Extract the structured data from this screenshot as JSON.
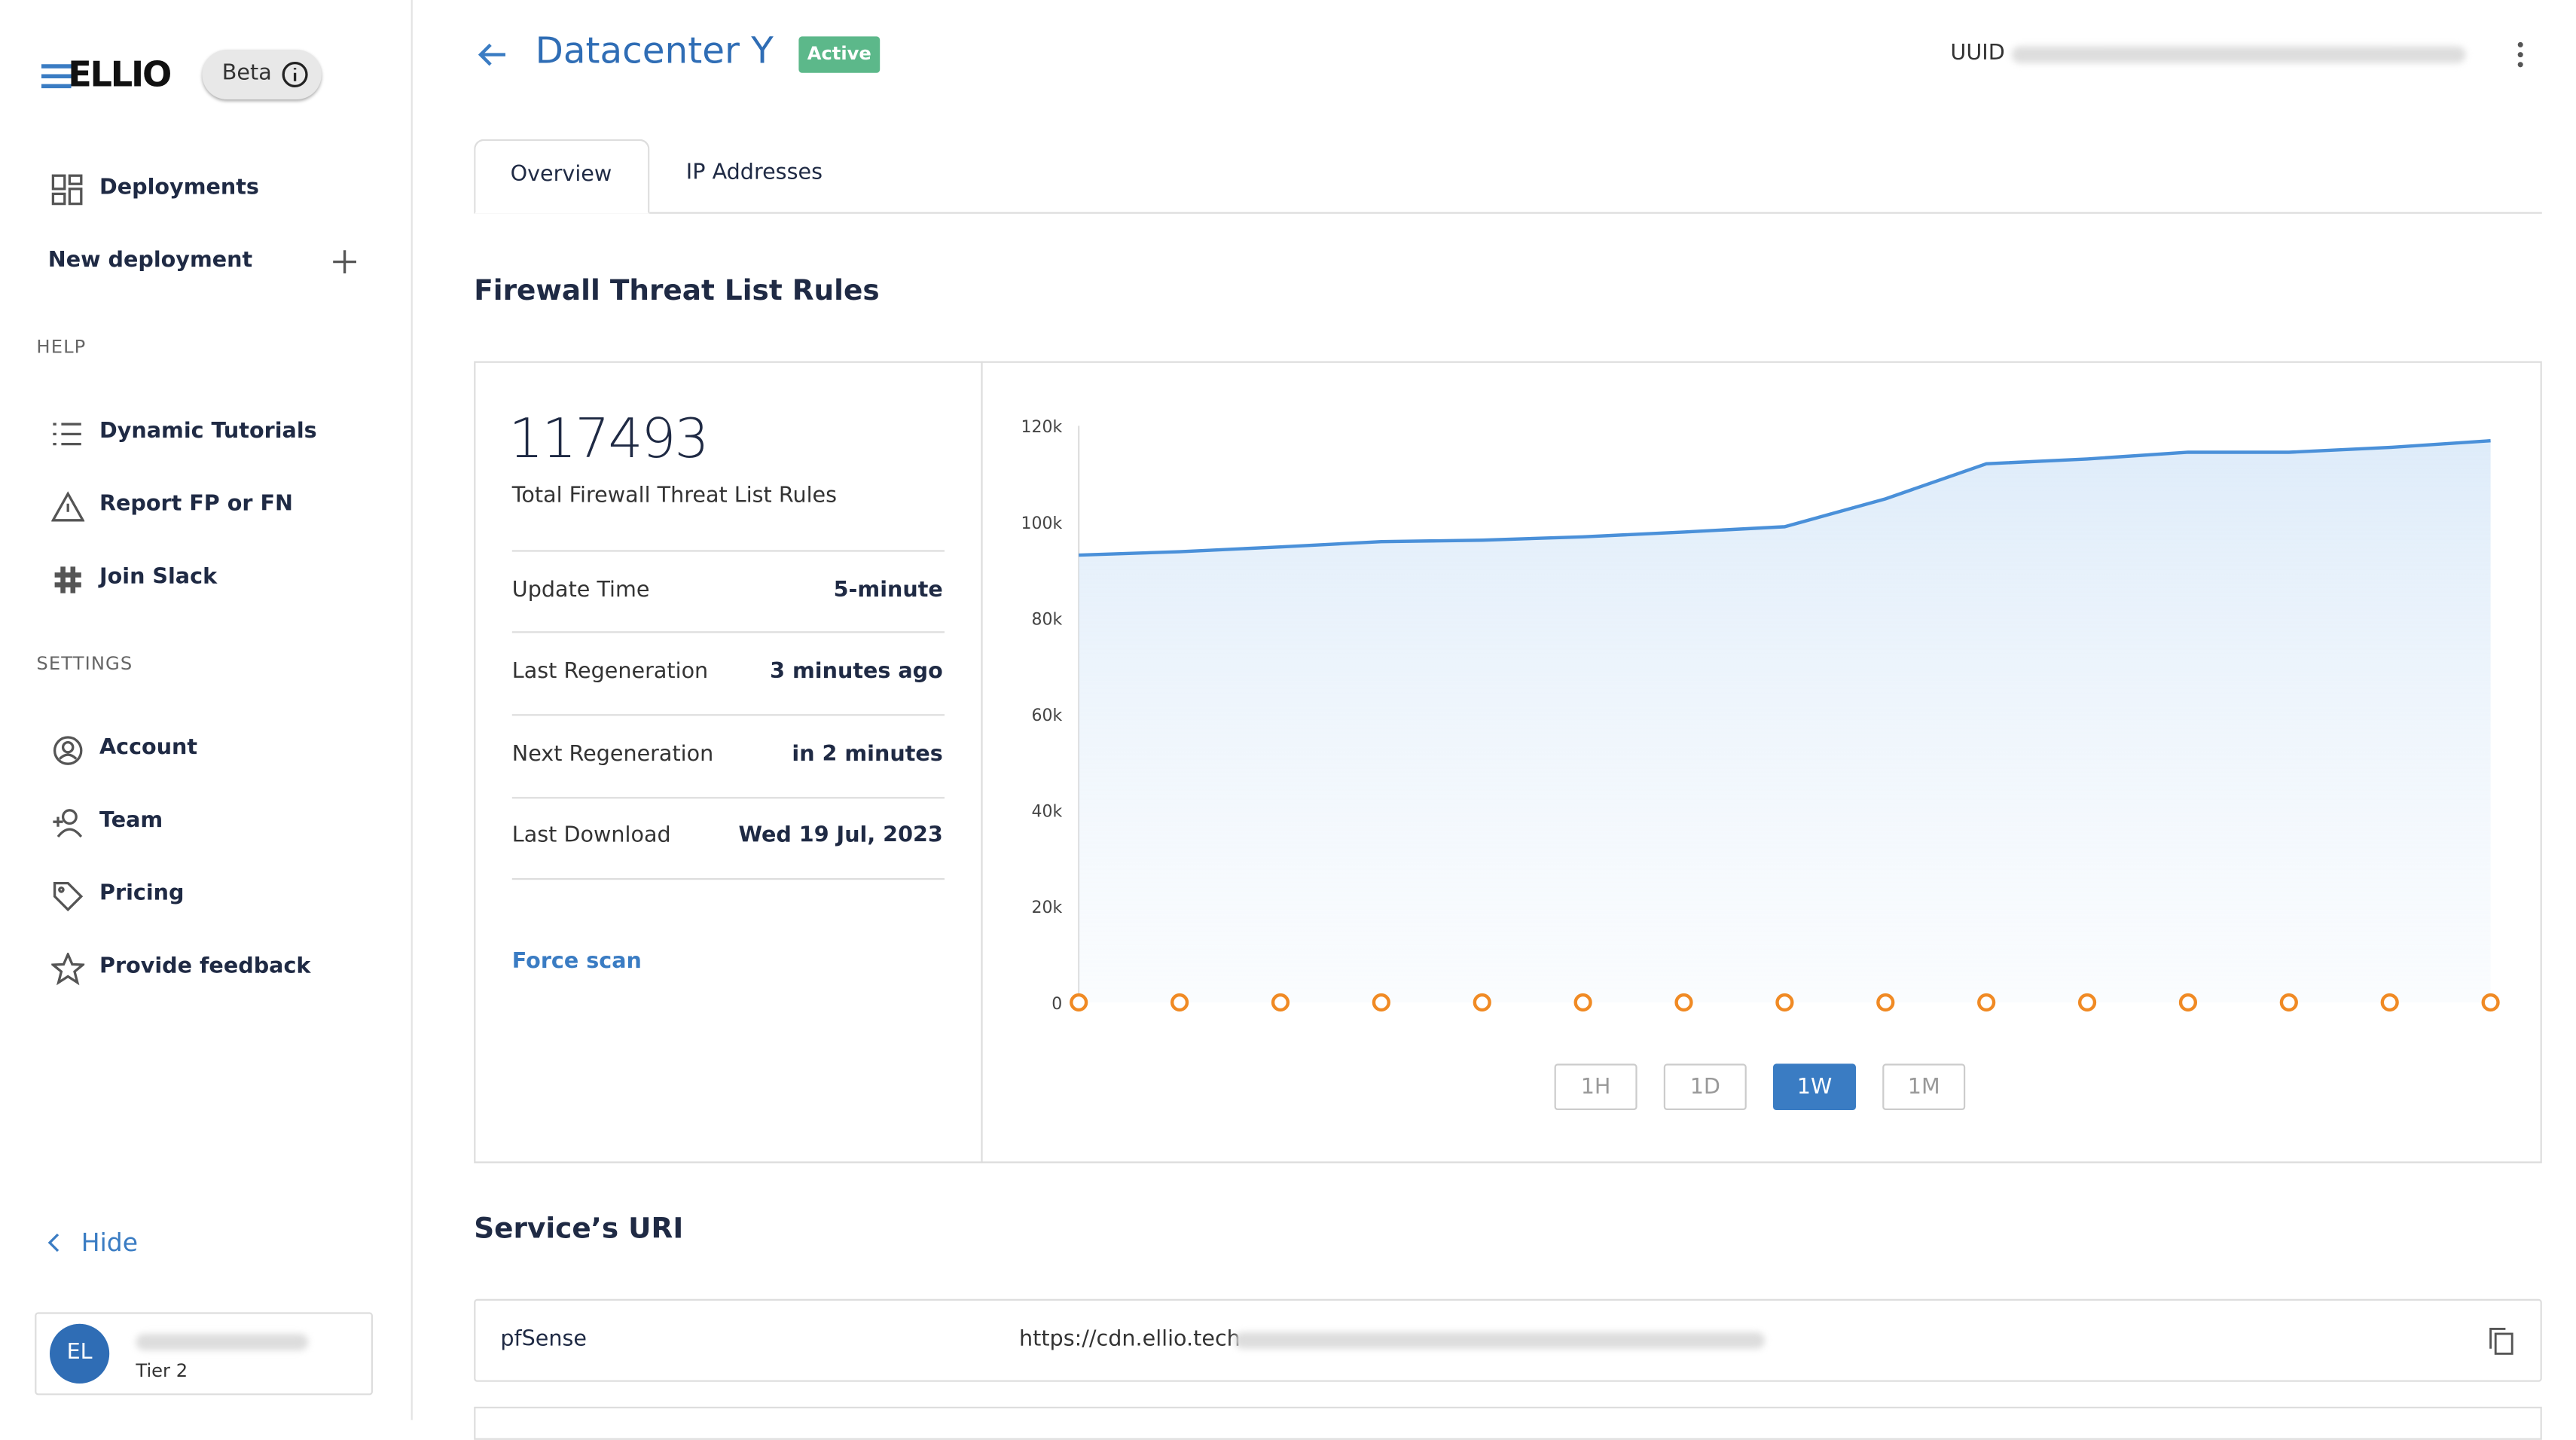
{
  "sidebar": {
    "logo": "ELLIO",
    "badge": "Beta",
    "nav": [
      "Deployments",
      "New deployment"
    ],
    "help_heading": "HELP",
    "help": [
      "Dynamic Tutorials",
      "Report FP or FN",
      "Join Slack"
    ],
    "settings_heading": "SETTINGS",
    "settings": [
      "Account",
      "Team",
      "Pricing",
      "Provide feedback"
    ],
    "hide": "Hide",
    "user": {
      "initials": "EL",
      "tier": "Tier 2"
    }
  },
  "header": {
    "title": "Datacenter Y",
    "status": "Active",
    "uuid_label": "UUID"
  },
  "tabs": [
    "Overview",
    "IP Addresses"
  ],
  "section_title": "Firewall Threat List Rules",
  "stats": {
    "total": "117493",
    "total_label": "Total Firewall Threat List Rules",
    "rows": [
      {
        "label": "Update Time",
        "value": "5-minute"
      },
      {
        "label": "Last Regeneration",
        "value": "3 minutes ago"
      },
      {
        "label": "Next Regeneration",
        "value": "in 2 minutes"
      },
      {
        "label": "Last Download",
        "value": "Wed 19 Jul, 2023"
      }
    ],
    "action": "Force scan"
  },
  "range_buttons": [
    "1H",
    "1D",
    "1W",
    "1M"
  ],
  "chart_data": {
    "type": "line",
    "categories": [
      null,
      null,
      null,
      null,
      null,
      null,
      null,
      null,
      null,
      null,
      null,
      null,
      null,
      null,
      null
    ],
    "series": [
      {
        "color": "#4a90d9",
        "values": [
          93100,
          93800,
          94800,
          95900,
          96200,
          96900,
          97900,
          99000,
          104800,
          112100,
          113100,
          114500,
          114500,
          115500,
          116900
        ]
      },
      {
        "color": "#f08a24",
        "values": [
          0,
          0,
          0,
          0,
          0,
          0,
          0,
          0,
          0,
          0,
          0,
          0,
          0,
          0,
          0
        ]
      }
    ],
    "ylim": [
      0,
      120000
    ],
    "yticks": [
      0,
      {
        "value": 20000,
        "label": "20k"
      },
      {
        "value": 40000,
        "label": "40k"
      },
      {
        "value": 60000,
        "label": "60k"
      },
      {
        "value": 80000,
        "label": "80k"
      },
      {
        "value": 100000,
        "label": "100k"
      },
      {
        "value": 120000,
        "label": "120k"
      }
    ]
  },
  "uri_section": {
    "title": "Service’s URI",
    "rows": [
      {
        "name": "pfSense",
        "url": "https://cdn.ellio.tech"
      }
    ]
  }
}
